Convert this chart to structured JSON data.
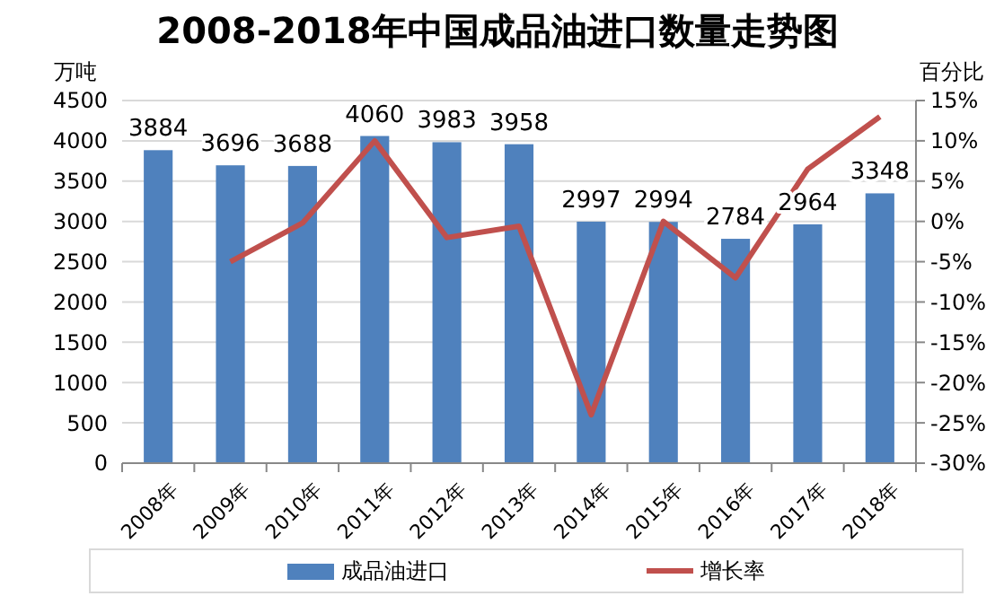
{
  "chart_data": {
    "type": "bar",
    "title": "2008-2018年中国成品油进口数量走势图",
    "ylabel": "万吨",
    "y2label": "百分比",
    "categories": [
      "2008年",
      "2009年",
      "2010年",
      "2011年",
      "2012年",
      "2013年",
      "2014年",
      "2015年",
      "2016年",
      "2017年",
      "2018年"
    ],
    "series": [
      {
        "name": "成品油进口",
        "color": "#4f81bd",
        "values": [
          3884,
          3696,
          3688,
          4060,
          3983,
          3958,
          2997,
          2994,
          2784,
          2964,
          3348
        ],
        "value_labels": [
          "3884",
          "3696",
          "3688",
          "4060",
          "3983",
          "3958",
          "2997",
          "2994",
          "2784",
          "2964",
          "3348"
        ]
      },
      {
        "name": "增长率",
        "type": "line",
        "axis": "y2",
        "color": "#c0504d",
        "values": [
          null,
          -5,
          -0.2,
          10,
          -2,
          -0.6,
          -24,
          0,
          -7,
          6.5,
          13
        ]
      }
    ],
    "ylim": [
      0,
      4500
    ],
    "yticks": [
      0,
      500,
      1000,
      1500,
      2000,
      2500,
      3000,
      3500,
      4000,
      4500
    ],
    "y2lim": [
      -30,
      15
    ],
    "y2ticks": [
      {
        "value": -30,
        "label": "-30%"
      },
      {
        "value": -25,
        "label": "-25%"
      },
      {
        "value": -20,
        "label": "-20%"
      },
      {
        "value": -15,
        "label": "-15%"
      },
      {
        "value": -10,
        "label": "-10%"
      },
      {
        "value": -5,
        "label": "-5%"
      },
      {
        "value": 0,
        "label": "0%"
      },
      {
        "value": 5,
        "label": "5%"
      },
      {
        "value": 10,
        "label": "10%"
      },
      {
        "value": 15,
        "label": "15%"
      }
    ],
    "grid": "y",
    "legend": "bottom",
    "marker": "none",
    "line_style": "solid"
  }
}
